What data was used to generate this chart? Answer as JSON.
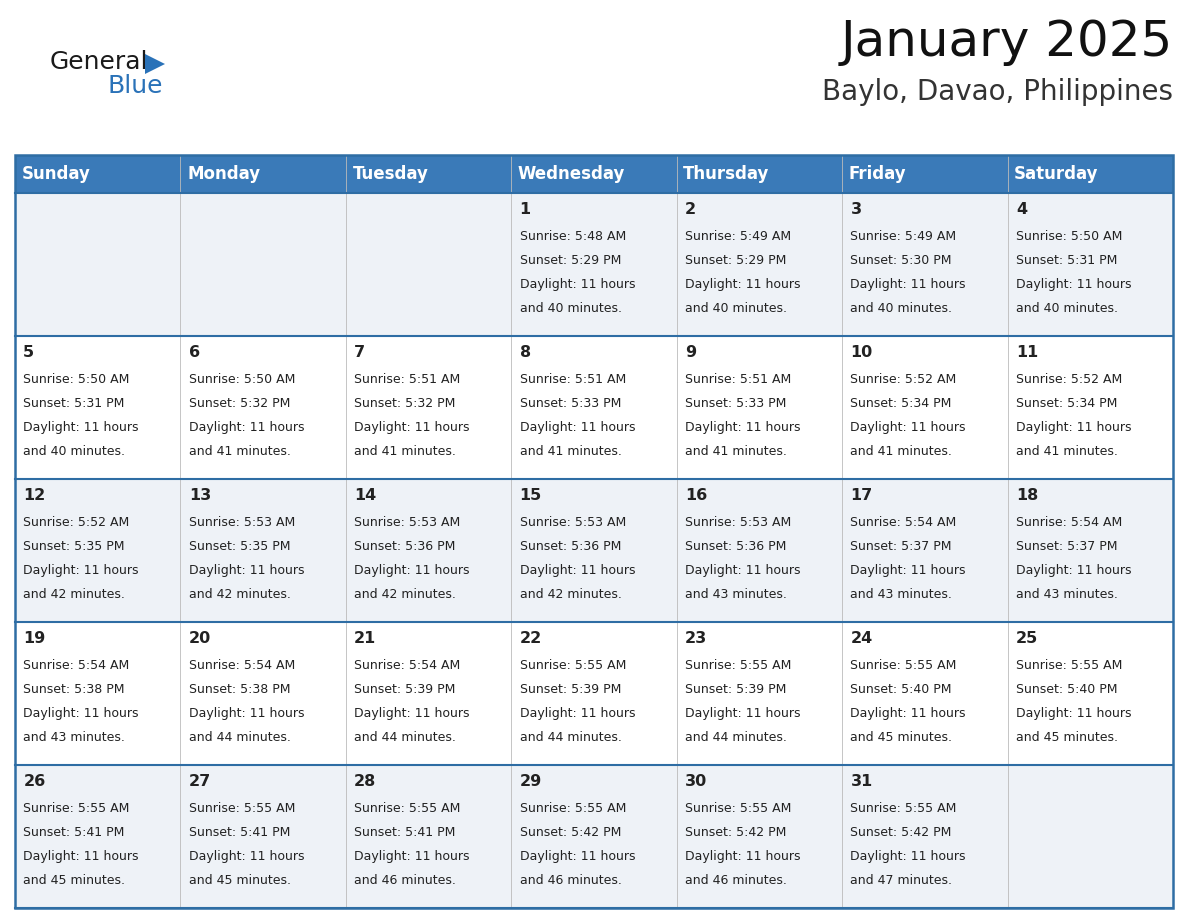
{
  "title": "January 2025",
  "subtitle": "Baylo, Davao, Philippines",
  "days_of_week": [
    "Sunday",
    "Monday",
    "Tuesday",
    "Wednesday",
    "Thursday",
    "Friday",
    "Saturday"
  ],
  "header_bg": "#3a7ab8",
  "header_text": "#ffffff",
  "row_bg_even": "#eef2f7",
  "row_bg_odd": "#ffffff",
  "border_color": "#2e6da4",
  "day_num_color": "#222222",
  "text_color": "#222222",
  "logo_black": "#1a1a1a",
  "logo_blue": "#2a72b8",
  "calendar_data": [
    [
      null,
      null,
      null,
      {
        "day": 1,
        "sunrise": "5:48 AM",
        "sunset": "5:29 PM",
        "daylight": "11 hours",
        "daylight2": "and 40 minutes."
      },
      {
        "day": 2,
        "sunrise": "5:49 AM",
        "sunset": "5:29 PM",
        "daylight": "11 hours",
        "daylight2": "and 40 minutes."
      },
      {
        "day": 3,
        "sunrise": "5:49 AM",
        "sunset": "5:30 PM",
        "daylight": "11 hours",
        "daylight2": "and 40 minutes."
      },
      {
        "day": 4,
        "sunrise": "5:50 AM",
        "sunset": "5:31 PM",
        "daylight": "11 hours",
        "daylight2": "and 40 minutes."
      }
    ],
    [
      {
        "day": 5,
        "sunrise": "5:50 AM",
        "sunset": "5:31 PM",
        "daylight": "11 hours",
        "daylight2": "and 40 minutes."
      },
      {
        "day": 6,
        "sunrise": "5:50 AM",
        "sunset": "5:32 PM",
        "daylight": "11 hours",
        "daylight2": "and 41 minutes."
      },
      {
        "day": 7,
        "sunrise": "5:51 AM",
        "sunset": "5:32 PM",
        "daylight": "11 hours",
        "daylight2": "and 41 minutes."
      },
      {
        "day": 8,
        "sunrise": "5:51 AM",
        "sunset": "5:33 PM",
        "daylight": "11 hours",
        "daylight2": "and 41 minutes."
      },
      {
        "day": 9,
        "sunrise": "5:51 AM",
        "sunset": "5:33 PM",
        "daylight": "11 hours",
        "daylight2": "and 41 minutes."
      },
      {
        "day": 10,
        "sunrise": "5:52 AM",
        "sunset": "5:34 PM",
        "daylight": "11 hours",
        "daylight2": "and 41 minutes."
      },
      {
        "day": 11,
        "sunrise": "5:52 AM",
        "sunset": "5:34 PM",
        "daylight": "11 hours",
        "daylight2": "and 41 minutes."
      }
    ],
    [
      {
        "day": 12,
        "sunrise": "5:52 AM",
        "sunset": "5:35 PM",
        "daylight": "11 hours",
        "daylight2": "and 42 minutes."
      },
      {
        "day": 13,
        "sunrise": "5:53 AM",
        "sunset": "5:35 PM",
        "daylight": "11 hours",
        "daylight2": "and 42 minutes."
      },
      {
        "day": 14,
        "sunrise": "5:53 AM",
        "sunset": "5:36 PM",
        "daylight": "11 hours",
        "daylight2": "and 42 minutes."
      },
      {
        "day": 15,
        "sunrise": "5:53 AM",
        "sunset": "5:36 PM",
        "daylight": "11 hours",
        "daylight2": "and 42 minutes."
      },
      {
        "day": 16,
        "sunrise": "5:53 AM",
        "sunset": "5:36 PM",
        "daylight": "11 hours",
        "daylight2": "and 43 minutes."
      },
      {
        "day": 17,
        "sunrise": "5:54 AM",
        "sunset": "5:37 PM",
        "daylight": "11 hours",
        "daylight2": "and 43 minutes."
      },
      {
        "day": 18,
        "sunrise": "5:54 AM",
        "sunset": "5:37 PM",
        "daylight": "11 hours",
        "daylight2": "and 43 minutes."
      }
    ],
    [
      {
        "day": 19,
        "sunrise": "5:54 AM",
        "sunset": "5:38 PM",
        "daylight": "11 hours",
        "daylight2": "and 43 minutes."
      },
      {
        "day": 20,
        "sunrise": "5:54 AM",
        "sunset": "5:38 PM",
        "daylight": "11 hours",
        "daylight2": "and 44 minutes."
      },
      {
        "day": 21,
        "sunrise": "5:54 AM",
        "sunset": "5:39 PM",
        "daylight": "11 hours",
        "daylight2": "and 44 minutes."
      },
      {
        "day": 22,
        "sunrise": "5:55 AM",
        "sunset": "5:39 PM",
        "daylight": "11 hours",
        "daylight2": "and 44 minutes."
      },
      {
        "day": 23,
        "sunrise": "5:55 AM",
        "sunset": "5:39 PM",
        "daylight": "11 hours",
        "daylight2": "and 44 minutes."
      },
      {
        "day": 24,
        "sunrise": "5:55 AM",
        "sunset": "5:40 PM",
        "daylight": "11 hours",
        "daylight2": "and 45 minutes."
      },
      {
        "day": 25,
        "sunrise": "5:55 AM",
        "sunset": "5:40 PM",
        "daylight": "11 hours",
        "daylight2": "and 45 minutes."
      }
    ],
    [
      {
        "day": 26,
        "sunrise": "5:55 AM",
        "sunset": "5:41 PM",
        "daylight": "11 hours",
        "daylight2": "and 45 minutes."
      },
      {
        "day": 27,
        "sunrise": "5:55 AM",
        "sunset": "5:41 PM",
        "daylight": "11 hours",
        "daylight2": "and 45 minutes."
      },
      {
        "day": 28,
        "sunrise": "5:55 AM",
        "sunset": "5:41 PM",
        "daylight": "11 hours",
        "daylight2": "and 46 minutes."
      },
      {
        "day": 29,
        "sunrise": "5:55 AM",
        "sunset": "5:42 PM",
        "daylight": "11 hours",
        "daylight2": "and 46 minutes."
      },
      {
        "day": 30,
        "sunrise": "5:55 AM",
        "sunset": "5:42 PM",
        "daylight": "11 hours",
        "daylight2": "and 46 minutes."
      },
      {
        "day": 31,
        "sunrise": "5:55 AM",
        "sunset": "5:42 PM",
        "daylight": "11 hours",
        "daylight2": "and 47 minutes."
      },
      null
    ]
  ]
}
